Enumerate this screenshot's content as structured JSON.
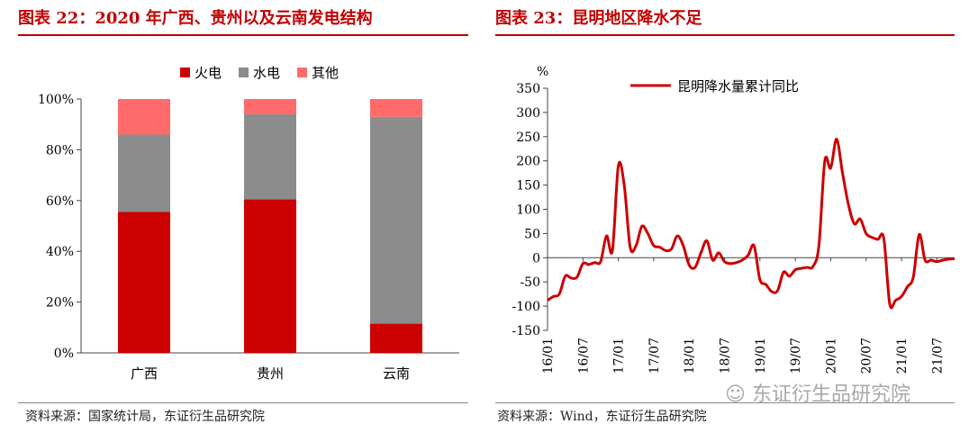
{
  "left": {
    "title": "图表 22：2020 年广西、贵州以及云南发电结构",
    "source": "资料来源：国家统计局，东证衍生品研究院"
  },
  "right": {
    "title": "图表 23：昆明地区降水不足",
    "source": "资料来源：Wind，东证衍生品研究院"
  },
  "watermark": "东证衍生品研究院",
  "chart_data": [
    {
      "type": "bar",
      "stacked": true,
      "categories": [
        "广西",
        "贵州",
        "云南"
      ],
      "series": [
        {
          "name": "火电",
          "values": [
            55.5,
            60.5,
            11.5
          ],
          "color": "#cc0000"
        },
        {
          "name": "水电",
          "values": [
            30.5,
            33.5,
            81.5
          ],
          "color": "#8c8c8c"
        },
        {
          "name": "其他",
          "values": [
            14.0,
            6.0,
            7.0
          ],
          "color": "#ff6a6a"
        }
      ],
      "ylim": [
        0,
        100
      ],
      "yticks": [
        "0%",
        "20%",
        "40%",
        "60%",
        "80%",
        "100%"
      ],
      "legend": "top",
      "grid": false
    },
    {
      "type": "line",
      "unit": "%",
      "ylim": [
        -150,
        350
      ],
      "yticks": [
        350,
        300,
        250,
        200,
        150,
        100,
        50,
        0,
        -50,
        -100,
        -150
      ],
      "xticks": [
        "16/01",
        "16/07",
        "17/01",
        "17/07",
        "18/01",
        "18/07",
        "19/01",
        "19/07",
        "20/01",
        "20/07",
        "21/01",
        "21/07"
      ],
      "legend": "top",
      "grid": false,
      "series": [
        {
          "name": "昆明降水量累计同比",
          "color": "#cc0000",
          "x": [
            "16/01",
            "16/02",
            "16/03",
            "16/04",
            "16/05",
            "16/06",
            "16/07",
            "16/08",
            "16/09",
            "16/10",
            "16/11",
            "16/12",
            "17/01",
            "17/02",
            "17/03",
            "17/04",
            "17/05",
            "17/06",
            "17/07",
            "17/08",
            "17/09",
            "17/10",
            "17/11",
            "17/12",
            "18/01",
            "18/02",
            "18/03",
            "18/04",
            "18/05",
            "18/06",
            "18/07",
            "18/08",
            "18/09",
            "18/10",
            "18/11",
            "18/12",
            "19/01",
            "19/02",
            "19/03",
            "19/04",
            "19/05",
            "19/06",
            "19/07",
            "19/08",
            "19/09",
            "19/10",
            "19/11",
            "19/12",
            "20/01",
            "20/02",
            "20/03",
            "20/04",
            "20/05",
            "20/06",
            "20/07",
            "20/08",
            "20/09",
            "20/10",
            "20/11",
            "20/12",
            "21/01",
            "21/02",
            "21/03",
            "21/04",
            "21/05",
            "21/06",
            "21/07",
            "21/08",
            "21/09",
            "21/10"
          ],
          "values": [
            -88,
            -80,
            -75,
            -38,
            -42,
            -40,
            -12,
            -14,
            -10,
            -8,
            45,
            15,
            190,
            150,
            22,
            25,
            65,
            50,
            25,
            22,
            15,
            18,
            45,
            25,
            -15,
            -20,
            10,
            35,
            -5,
            10,
            -8,
            -12,
            -10,
            -5,
            5,
            25,
            -45,
            -55,
            -70,
            -68,
            -30,
            -38,
            -25,
            -22,
            -20,
            -18,
            25,
            200,
            185,
            245,
            175,
            110,
            70,
            80,
            50,
            42,
            38,
            40,
            -95,
            -88,
            -80,
            -60,
            -40,
            48,
            -5,
            -5,
            -8,
            -5,
            -3,
            -2
          ]
        }
      ]
    }
  ]
}
